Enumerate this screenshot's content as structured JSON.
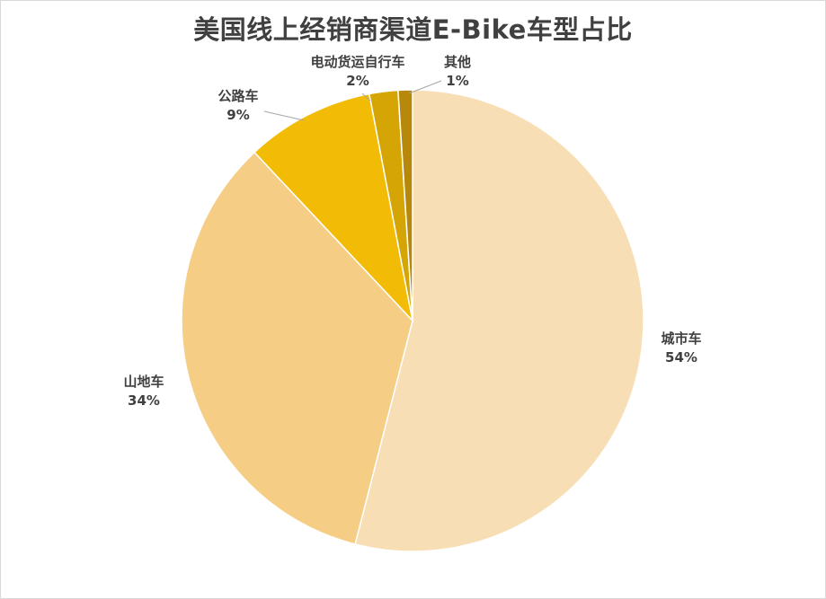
{
  "chart_data": {
    "type": "pie",
    "title": "美国线上经销商渠道E-Bike车型占比",
    "start_angle_deg": 0,
    "direction": "clockwise",
    "slices": [
      {
        "name": "城市车",
        "value": 54,
        "label": "54%",
        "color": "#f8deb5"
      },
      {
        "name": "山地车",
        "value": 34,
        "label": "34%",
        "color": "#f5cd84"
      },
      {
        "name": "公路车",
        "value": 9,
        "label": "9%",
        "color": "#f2bb05"
      },
      {
        "name": "电动货运自行车",
        "value": 2,
        "label": "2%",
        "color": "#d4a505"
      },
      {
        "name": "其他",
        "value": 1,
        "label": "1%",
        "color": "#b8880a"
      }
    ],
    "legend": "none",
    "data_labels": "outside, category name and percentage"
  }
}
